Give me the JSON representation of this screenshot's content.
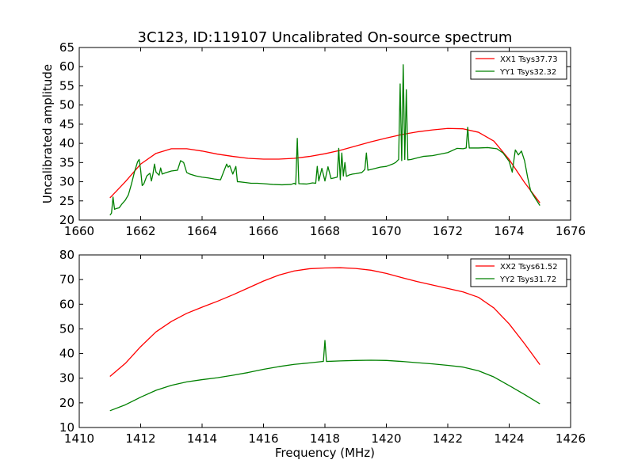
{
  "title": "3C123, ID:119107 Uncalibrated On-source spectrum",
  "chart_data": [
    {
      "type": "line",
      "xlabel": "",
      "ylabel": "Uncalibrated amplitude",
      "xlim": [
        1660,
        1676
      ],
      "ylim": [
        20,
        65
      ],
      "xticks": [
        "1660",
        "1662",
        "1664",
        "1666",
        "1668",
        "1670",
        "1672",
        "1674",
        "1676"
      ],
      "yticks": [
        "20",
        "25",
        "30",
        "35",
        "40",
        "45",
        "50",
        "55",
        "60",
        "65"
      ],
      "grid": false,
      "legend_position": "top-right",
      "series": [
        {
          "name": "XX1 Tsys37.73",
          "color": "#ff0000",
          "x": [
            1661.0,
            1661.5,
            1662.0,
            1662.5,
            1663.0,
            1663.5,
            1664.0,
            1664.5,
            1665.0,
            1665.5,
            1666.0,
            1666.5,
            1667.0,
            1667.5,
            1668.0,
            1668.5,
            1669.0,
            1669.5,
            1670.0,
            1670.5,
            1671.0,
            1671.5,
            1672.0,
            1672.5,
            1673.0,
            1673.5,
            1674.0,
            1674.5,
            1675.0
          ],
          "y": [
            25.8,
            30.0,
            34.6,
            37.4,
            38.6,
            38.6,
            38.0,
            37.2,
            36.6,
            36.1,
            35.9,
            35.9,
            36.1,
            36.6,
            37.3,
            38.2,
            39.3,
            40.4,
            41.4,
            42.3,
            43.0,
            43.5,
            43.9,
            43.8,
            42.9,
            40.6,
            35.8,
            29.8,
            24.5
          ]
        },
        {
          "name": "YY1 Tsys32.32",
          "color": "#008000",
          "x": [
            1661.0,
            1661.05,
            1661.1,
            1661.15,
            1661.2,
            1661.3,
            1661.4,
            1661.5,
            1661.6,
            1661.7,
            1661.8,
            1661.9,
            1661.95,
            1662.0,
            1662.05,
            1662.1,
            1662.2,
            1662.3,
            1662.35,
            1662.4,
            1662.45,
            1662.5,
            1662.6,
            1662.65,
            1662.7,
            1662.8,
            1663.0,
            1663.2,
            1663.3,
            1663.4,
            1663.5,
            1663.6,
            1663.8,
            1664.0,
            1664.2,
            1664.4,
            1664.6,
            1664.8,
            1664.85,
            1664.9,
            1665.0,
            1665.1,
            1665.15,
            1665.2,
            1665.4,
            1665.6,
            1665.8,
            1666.0,
            1666.3,
            1666.6,
            1666.9,
            1667.0,
            1667.05,
            1667.1,
            1667.15,
            1667.4,
            1667.6,
            1667.7,
            1667.75,
            1667.8,
            1667.9,
            1668.0,
            1668.1,
            1668.2,
            1668.3,
            1668.4,
            1668.45,
            1668.5,
            1668.55,
            1668.6,
            1668.65,
            1668.7,
            1668.8,
            1668.9,
            1669.0,
            1669.2,
            1669.3,
            1669.35,
            1669.4,
            1669.6,
            1669.8,
            1670.0,
            1670.2,
            1670.3,
            1670.4,
            1670.45,
            1670.5,
            1670.55,
            1670.6,
            1670.65,
            1670.7,
            1670.8,
            1671.0,
            1671.2,
            1671.5,
            1672.0,
            1672.3,
            1672.5,
            1672.6,
            1672.65,
            1672.7,
            1673.0,
            1673.3,
            1673.6,
            1673.8,
            1674.0,
            1674.1,
            1674.2,
            1674.3,
            1674.4,
            1674.5,
            1674.6,
            1674.7,
            1674.8,
            1675.0
          ],
          "y": [
            21.3,
            21.8,
            26.0,
            22.8,
            23.0,
            23.2,
            24.3,
            25.2,
            26.6,
            29.4,
            32.6,
            35.2,
            35.8,
            33.0,
            29.0,
            29.4,
            31.5,
            32.2,
            30.2,
            32.0,
            34.6,
            32.5,
            31.7,
            33.6,
            32.0,
            32.3,
            32.8,
            33.0,
            35.5,
            35.0,
            32.4,
            32.0,
            31.5,
            31.2,
            31.0,
            30.7,
            30.5,
            34.6,
            33.8,
            34.2,
            32.0,
            34.0,
            30.0,
            30.0,
            29.8,
            29.6,
            29.6,
            29.5,
            29.3,
            29.2,
            29.3,
            29.6,
            29.3,
            41.3,
            29.5,
            29.4,
            29.7,
            29.6,
            34.0,
            30.2,
            33.5,
            30.2,
            33.9,
            30.8,
            31.0,
            31.2,
            38.7,
            30.5,
            37.5,
            31.5,
            35.0,
            31.4,
            31.8,
            32.0,
            32.1,
            32.4,
            33.2,
            37.5,
            33.0,
            33.4,
            33.8,
            34.0,
            34.6,
            35.0,
            35.8,
            55.5,
            35.5,
            60.5,
            35.8,
            54.0,
            35.7,
            35.8,
            36.2,
            36.6,
            36.8,
            37.6,
            38.7,
            38.6,
            38.8,
            44.2,
            38.8,
            38.8,
            38.9,
            38.6,
            37.5,
            35.3,
            32.5,
            38.3,
            37.0,
            38.0,
            35.5,
            31.2,
            27.6,
            26.3,
            23.8
          ]
        }
      ]
    },
    {
      "type": "line",
      "xlabel": "Frequency (MHz)",
      "ylabel": "",
      "xlim": [
        1410,
        1426
      ],
      "ylim": [
        10,
        80
      ],
      "xticks": [
        "1410",
        "1412",
        "1414",
        "1416",
        "1418",
        "1420",
        "1422",
        "1424",
        "1426"
      ],
      "yticks": [
        "10",
        "20",
        "30",
        "40",
        "50",
        "60",
        "70",
        "80"
      ],
      "grid": false,
      "legend_position": "top-right",
      "series": [
        {
          "name": "XX2 Tsys61.52",
          "color": "#ff0000",
          "x": [
            1411.0,
            1411.5,
            1412.0,
            1412.5,
            1413.0,
            1413.5,
            1414.0,
            1414.5,
            1415.0,
            1415.5,
            1416.0,
            1416.5,
            1417.0,
            1417.5,
            1418.0,
            1418.5,
            1419.0,
            1419.5,
            1420.0,
            1420.5,
            1421.0,
            1421.5,
            1422.0,
            1422.5,
            1423.0,
            1423.5,
            1424.0,
            1424.5,
            1425.0
          ],
          "y": [
            30.7,
            36.0,
            42.8,
            48.8,
            53.0,
            56.3,
            58.8,
            61.2,
            63.8,
            66.6,
            69.4,
            71.8,
            73.5,
            74.4,
            74.7,
            74.8,
            74.5,
            73.8,
            72.5,
            70.8,
            69.2,
            67.8,
            66.4,
            65.0,
            62.8,
            58.5,
            52.0,
            44.0,
            35.5
          ]
        },
        {
          "name": "YY2 Tsys31.72",
          "color": "#008000",
          "x": [
            1411.0,
            1411.5,
            1412.0,
            1412.5,
            1413.0,
            1413.5,
            1414.0,
            1414.5,
            1415.0,
            1415.5,
            1416.0,
            1416.5,
            1417.0,
            1417.5,
            1417.95,
            1418.0,
            1418.05,
            1418.5,
            1419.0,
            1419.5,
            1420.0,
            1420.5,
            1421.0,
            1421.5,
            1422.0,
            1422.5,
            1423.0,
            1423.5,
            1424.0,
            1424.5,
            1425.0
          ],
          "y": [
            16.8,
            19.2,
            22.3,
            25.1,
            27.1,
            28.5,
            29.4,
            30.2,
            31.2,
            32.3,
            33.6,
            34.7,
            35.6,
            36.2,
            36.8,
            45.3,
            36.8,
            37.0,
            37.2,
            37.3,
            37.2,
            36.8,
            36.3,
            35.8,
            35.2,
            34.5,
            33.0,
            30.5,
            27.0,
            23.4,
            19.6
          ]
        }
      ]
    }
  ]
}
